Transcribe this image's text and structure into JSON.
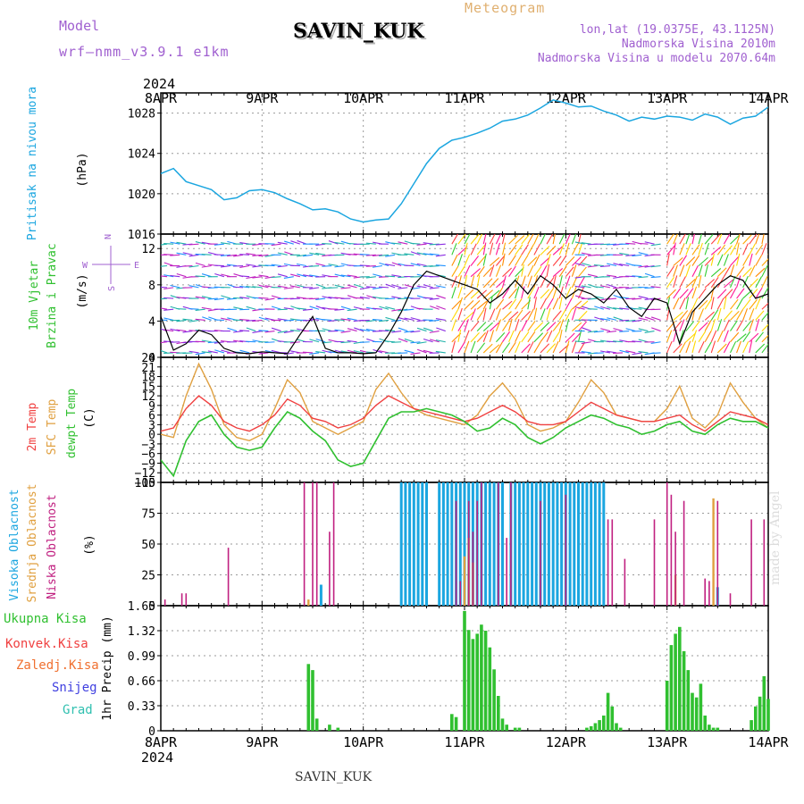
{
  "header": {
    "model_label": "Model",
    "model_name": "wrf—nmm_v3.9.1 e1km",
    "title": "SAVIN_KUK",
    "meteogram_label": "Meteogram",
    "coords": "lon,lat (19.0375E, 43.1125N)",
    "elevation": "Nadmorska Visina 2010m",
    "model_elevation": "Nadmorska Visina u modelu 2070.64m"
  },
  "footer": {
    "station": "SAVIN_KUK",
    "credit": "made by Angel"
  },
  "time_axis": {
    "year_label": "2024",
    "labels": [
      "8APR",
      "9APR",
      "10APR",
      "11APR",
      "12APR",
      "13APR",
      "14APR"
    ],
    "start": "2024-04-08T00:00",
    "end": "2024-04-14T00:00"
  },
  "colors": {
    "pressure": "#1ba6e0",
    "temp_2m": "#f04040",
    "temp_sfc": "#e0a040",
    "dewpoint": "#30c030",
    "wind_speed": "#000000",
    "precip_total": "#30c030",
    "cloud_high": "#1ba6e0",
    "cloud_mid": "#e0a040",
    "cloud_low": "#c02080",
    "label_total_rain": "#30c030",
    "label_conv_rain": "#f04040",
    "label_freezing_rain": "#f07030",
    "label_snow": "#4040e0",
    "label_hail": "#30c0b0",
    "label_wind_legend": "#a060d0"
  },
  "panels": {
    "pressure": {
      "labels": [
        "Pritisak na nivou mora",
        "(hPa)"
      ],
      "ylim": [
        1016,
        1030
      ],
      "yticks": [
        1016,
        1020,
        1024,
        1028
      ]
    },
    "wind": {
      "labels": [
        "10m Vjetar",
        "Brzina i Pravac",
        "(m/s)"
      ],
      "legend": {
        "n": "N",
        "s": "S",
        "w": "W",
        "e": "E"
      },
      "ylim": [
        0,
        13.6
      ],
      "yticks": [
        0,
        4,
        8,
        12
      ]
    },
    "temperature": {
      "labels": [
        "2m Temp",
        "SFC Temp",
        "dewpt Temp",
        "(C)"
      ],
      "ylim": [
        -15,
        24
      ],
      "yticks": [
        -15,
        -12,
        -9,
        -6,
        -3,
        0,
        3,
        6,
        9,
        12,
        15,
        18,
        21,
        24
      ]
    },
    "clouds": {
      "labels": [
        "Visoka Oblacnost",
        "Srednja Oblacnost",
        "Niska Oblacnost",
        "(%)"
      ],
      "ylim": [
        0,
        100
      ],
      "yticks": [
        0,
        25,
        50,
        75,
        100
      ]
    },
    "precip": {
      "labels": [
        "Ukupna Kisa",
        "Konvek.Kisa",
        "Zaledj.Kisa",
        "Snijeg",
        "Grad",
        "1hr Precip (mm)"
      ],
      "ylim": [
        0,
        1.65
      ],
      "yticks": [
        0,
        0.33,
        0.66,
        0.99,
        1.32,
        1.65
      ]
    }
  },
  "chart_data": [
    {
      "type": "line",
      "name": "pressure",
      "x": [
        0,
        3,
        6,
        9,
        12,
        15,
        18,
        21,
        24,
        27,
        30,
        33,
        36,
        39,
        42,
        45,
        48,
        51,
        54,
        57,
        60,
        63,
        66,
        69,
        72,
        75,
        78,
        81,
        84,
        87,
        90,
        93,
        96,
        99,
        102,
        105,
        108,
        111,
        114,
        117,
        120,
        123,
        126,
        129,
        132,
        135,
        138,
        141,
        144
      ],
      "series": [
        {
          "name": "Pritisak na nivou mora",
          "values": [
            1022,
            1022.5,
            1021.2,
            1020.8,
            1020.4,
            1019.4,
            1019.6,
            1020.3,
            1020.4,
            1020.1,
            1019.5,
            1019,
            1018.4,
            1018.5,
            1018.2,
            1017.5,
            1017.2,
            1017.4,
            1017.5,
            1019,
            1021,
            1023,
            1024.5,
            1025.3,
            1025.6,
            1026,
            1026.5,
            1027.2,
            1027.4,
            1027.8,
            1028.5,
            1029.3,
            1029,
            1028.6,
            1028.7,
            1028.2,
            1027.8,
            1027.2,
            1027.6,
            1027.4,
            1027.7,
            1027.6,
            1027.3,
            1027.9,
            1027.6,
            1026.9,
            1027.5,
            1027.7,
            1028.6
          ]
        }
      ]
    },
    {
      "type": "line",
      "name": "wind",
      "x": [
        0,
        3,
        6,
        9,
        12,
        15,
        18,
        21,
        24,
        27,
        30,
        33,
        36,
        39,
        42,
        45,
        48,
        51,
        54,
        57,
        60,
        63,
        66,
        69,
        72,
        75,
        78,
        81,
        84,
        87,
        90,
        93,
        96,
        99,
        102,
        105,
        108,
        111,
        114,
        117,
        120,
        123,
        126,
        129,
        132,
        135,
        138,
        141,
        144
      ],
      "series": [
        {
          "name": "10m Vjetar",
          "values": [
            4.5,
            0.8,
            1.5,
            3,
            2.5,
            1,
            0.5,
            0.4,
            0.6,
            0.5,
            0.4,
            2.5,
            4.5,
            1,
            0.5,
            0.5,
            0.4,
            0.5,
            2.5,
            5,
            8,
            9.5,
            9,
            8.5,
            8,
            7.5,
            6,
            7,
            8.5,
            7,
            9,
            8,
            6.5,
            7.5,
            7,
            6,
            7.5,
            5.5,
            4.5,
            6.5,
            6,
            1.5,
            5,
            6.5,
            8,
            9,
            8.5,
            6.5,
            7
          ]
        }
      ]
    },
    {
      "type": "line",
      "name": "temperature",
      "x": [
        0,
        3,
        6,
        9,
        12,
        15,
        18,
        21,
        24,
        27,
        30,
        33,
        36,
        39,
        42,
        45,
        48,
        51,
        54,
        57,
        60,
        63,
        66,
        69,
        72,
        75,
        78,
        81,
        84,
        87,
        90,
        93,
        96,
        99,
        102,
        105,
        108,
        111,
        114,
        117,
        120,
        123,
        126,
        129,
        132,
        135,
        138,
        141,
        144
      ],
      "series": [
        {
          "name": "2m Temp",
          "values": [
            1,
            2,
            8,
            12,
            9,
            4,
            2,
            1,
            3,
            6,
            11,
            9,
            5,
            4,
            2,
            3,
            5,
            9,
            12,
            10,
            8,
            7,
            6,
            5,
            4,
            5,
            7,
            9,
            7,
            4,
            3,
            3,
            4,
            7,
            10,
            8,
            6,
            5,
            4,
            4,
            5,
            6,
            3,
            1,
            4,
            7,
            6,
            5,
            3
          ]
        },
        {
          "name": "SFC Temp",
          "values": [
            0,
            -1,
            12,
            22,
            14,
            3,
            -1,
            -2,
            0,
            8,
            17,
            13,
            4,
            2,
            0,
            2,
            4,
            14,
            19,
            13,
            8,
            6,
            5,
            4,
            3,
            6,
            12,
            16,
            11,
            3,
            1,
            2,
            4,
            10,
            17,
            13,
            6,
            5,
            4,
            4,
            8,
            15,
            5,
            2,
            6,
            16,
            10,
            5,
            2
          ]
        },
        {
          "name": "dewpt Temp",
          "values": [
            -8,
            -13,
            -2,
            4,
            6,
            0,
            -4,
            -5,
            -4,
            2,
            7,
            5,
            1,
            -2,
            -8,
            -10,
            -9,
            -2,
            5,
            7,
            7,
            8,
            7,
            6,
            4,
            1,
            2,
            5,
            3,
            -1,
            -3,
            -1,
            2,
            4,
            6,
            5,
            3,
            2,
            0,
            1,
            3,
            4,
            1,
            0,
            3,
            5,
            4,
            4,
            2
          ]
        }
      ]
    },
    {
      "type": "bar",
      "name": "clouds",
      "series": [
        {
          "name": "Visoka Oblacnost",
          "x": [
            38,
            57,
            58,
            59,
            60,
            61,
            62,
            63,
            66,
            67,
            68,
            69,
            70,
            71,
            72,
            73,
            74,
            75,
            76,
            77,
            78,
            79,
            80,
            81,
            83,
            84,
            85,
            86,
            87,
            88,
            89,
            90,
            91,
            92,
            93,
            94,
            95,
            96,
            97,
            98,
            99,
            100,
            101,
            102,
            103,
            104,
            105,
            132
          ],
          "values": [
            17,
            100,
            100,
            100,
            100,
            100,
            100,
            100,
            100,
            100,
            100,
            100,
            100,
            100,
            100,
            100,
            100,
            100,
            100,
            100,
            100,
            100,
            100,
            100,
            100,
            100,
            100,
            100,
            100,
            100,
            100,
            100,
            100,
            100,
            100,
            100,
            100,
            100,
            100,
            100,
            100,
            100,
            100,
            100,
            100,
            100,
            100,
            15
          ]
        },
        {
          "name": "Srednja Oblacnost",
          "x": [
            35,
            72,
            73,
            74,
            122,
            131
          ],
          "values": [
            5,
            40,
            55,
            35,
            25,
            87
          ]
        },
        {
          "name": "Niska Oblacnost",
          "x": [
            1,
            5,
            6,
            16,
            34,
            36,
            37,
            40,
            41,
            70,
            71,
            73,
            74,
            75,
            76,
            80,
            82,
            83,
            90,
            96,
            106,
            107,
            110,
            117,
            120,
            121,
            122,
            124,
            129,
            130,
            132,
            135,
            140,
            143
          ],
          "values": [
            5,
            10,
            10,
            47,
            100,
            100,
            100,
            60,
            100,
            85,
            20,
            85,
            60,
            85,
            100,
            100,
            55,
            100,
            85,
            90,
            70,
            70,
            38,
            70,
            100,
            90,
            60,
            85,
            22,
            20,
            85,
            10,
            70,
            70
          ]
        }
      ]
    },
    {
      "type": "bar",
      "name": "precip",
      "x": [
        35,
        36,
        37,
        40,
        42,
        69,
        70,
        72,
        73,
        74,
        75,
        76,
        77,
        78,
        79,
        80,
        81,
        82,
        84,
        85,
        101,
        102,
        103,
        104,
        105,
        106,
        107,
        108,
        109,
        120,
        121,
        122,
        123,
        124,
        125,
        126,
        127,
        128,
        129,
        130,
        131,
        132,
        140,
        141,
        142,
        143,
        144
      ],
      "series": [
        {
          "name": "Ukupna Kisa",
          "values": [
            0.88,
            0.8,
            0.16,
            0.08,
            0.04,
            0.22,
            0.18,
            1.58,
            1.33,
            1.21,
            1.28,
            1.4,
            1.32,
            1.1,
            0.81,
            0.46,
            0.16,
            0.08,
            0.04,
            0.04,
            0.04,
            0.06,
            0.1,
            0.14,
            0.2,
            0.5,
            0.32,
            0.1,
            0.04,
            0.66,
            1.13,
            1.28,
            1.37,
            1.05,
            0.8,
            0.5,
            0.44,
            0.62,
            0.2,
            0.08,
            0.04,
            0.04,
            0.14,
            0.32,
            0.45,
            0.72,
            0.42
          ]
        }
      ]
    }
  ]
}
